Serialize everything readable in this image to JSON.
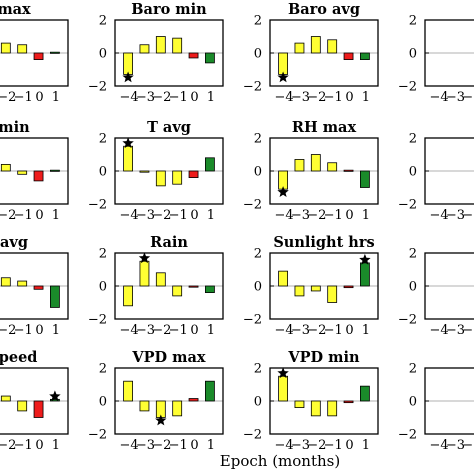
{
  "chart_data": {
    "type": "bar",
    "xlabel": "Epoch (months)",
    "x": [
      -4,
      -3,
      -2,
      -1,
      0,
      1
    ],
    "x_tick_labels": [
      "−4",
      "−3",
      "−2",
      "−1",
      "0",
      "1"
    ],
    "y_tick_labels": [
      "−2",
      "0",
      "2"
    ],
    "ylim": [
      -2,
      2
    ],
    "yticks": [
      -2,
      0,
      2
    ],
    "grid": false,
    "colors": {
      "pre": "#ffff33",
      "epoch0": "#ee1c1c",
      "post": "#1a8a2a",
      "outline": "#000000",
      "zero_line": "#b0b0b0"
    },
    "panels": [
      {
        "title": "max",
        "values": [
          0.9,
          0.5,
          0.6,
          0.5,
          -0.4,
          0.05
        ],
        "star": null
      },
      {
        "title": "Baro min",
        "values": [
          -1.3,
          0.5,
          1.0,
          0.9,
          -0.3,
          -0.6
        ],
        "star": 0
      },
      {
        "title": "Baro avg",
        "values": [
          -1.3,
          0.6,
          1.0,
          0.8,
          -0.4,
          -0.4
        ],
        "star": 0
      },
      {
        "title": "min",
        "values": [
          0.7,
          0.3,
          0.4,
          -0.2,
          -0.6,
          0.05
        ],
        "star": null
      },
      {
        "title": "T avg",
        "values": [
          1.5,
          -0.05,
          -0.9,
          -0.8,
          -0.4,
          0.8
        ],
        "star": 0
      },
      {
        "title": "RH max",
        "values": [
          -1.1,
          0.7,
          1.0,
          0.5,
          0.05,
          -1.0
        ],
        "star": 0
      },
      {
        "title": "avg",
        "values": [
          0.9,
          0.4,
          0.5,
          0.3,
          -0.2,
          -1.3
        ],
        "star": null
      },
      {
        "title": "Rain",
        "values": [
          -1.2,
          1.5,
          0.8,
          -0.6,
          0.0,
          -0.4
        ],
        "star": 1
      },
      {
        "title": "Sunlight hrs",
        "values": [
          0.9,
          -0.6,
          -0.3,
          -1.0,
          -0.1,
          1.4
        ],
        "star": 5
      },
      {
        "title": "speed",
        "values": [
          0.9,
          0.4,
          0.3,
          -0.6,
          -1.0,
          0.1
        ],
        "star": 5
      },
      {
        "title": "VPD max",
        "values": [
          1.2,
          -0.6,
          -1.0,
          -0.9,
          0.15,
          1.2
        ],
        "star": 2
      },
      {
        "title": "VPD min",
        "values": [
          1.5,
          -0.4,
          -0.9,
          -0.9,
          -0.1,
          0.9
        ],
        "star": 0
      }
    ]
  }
}
